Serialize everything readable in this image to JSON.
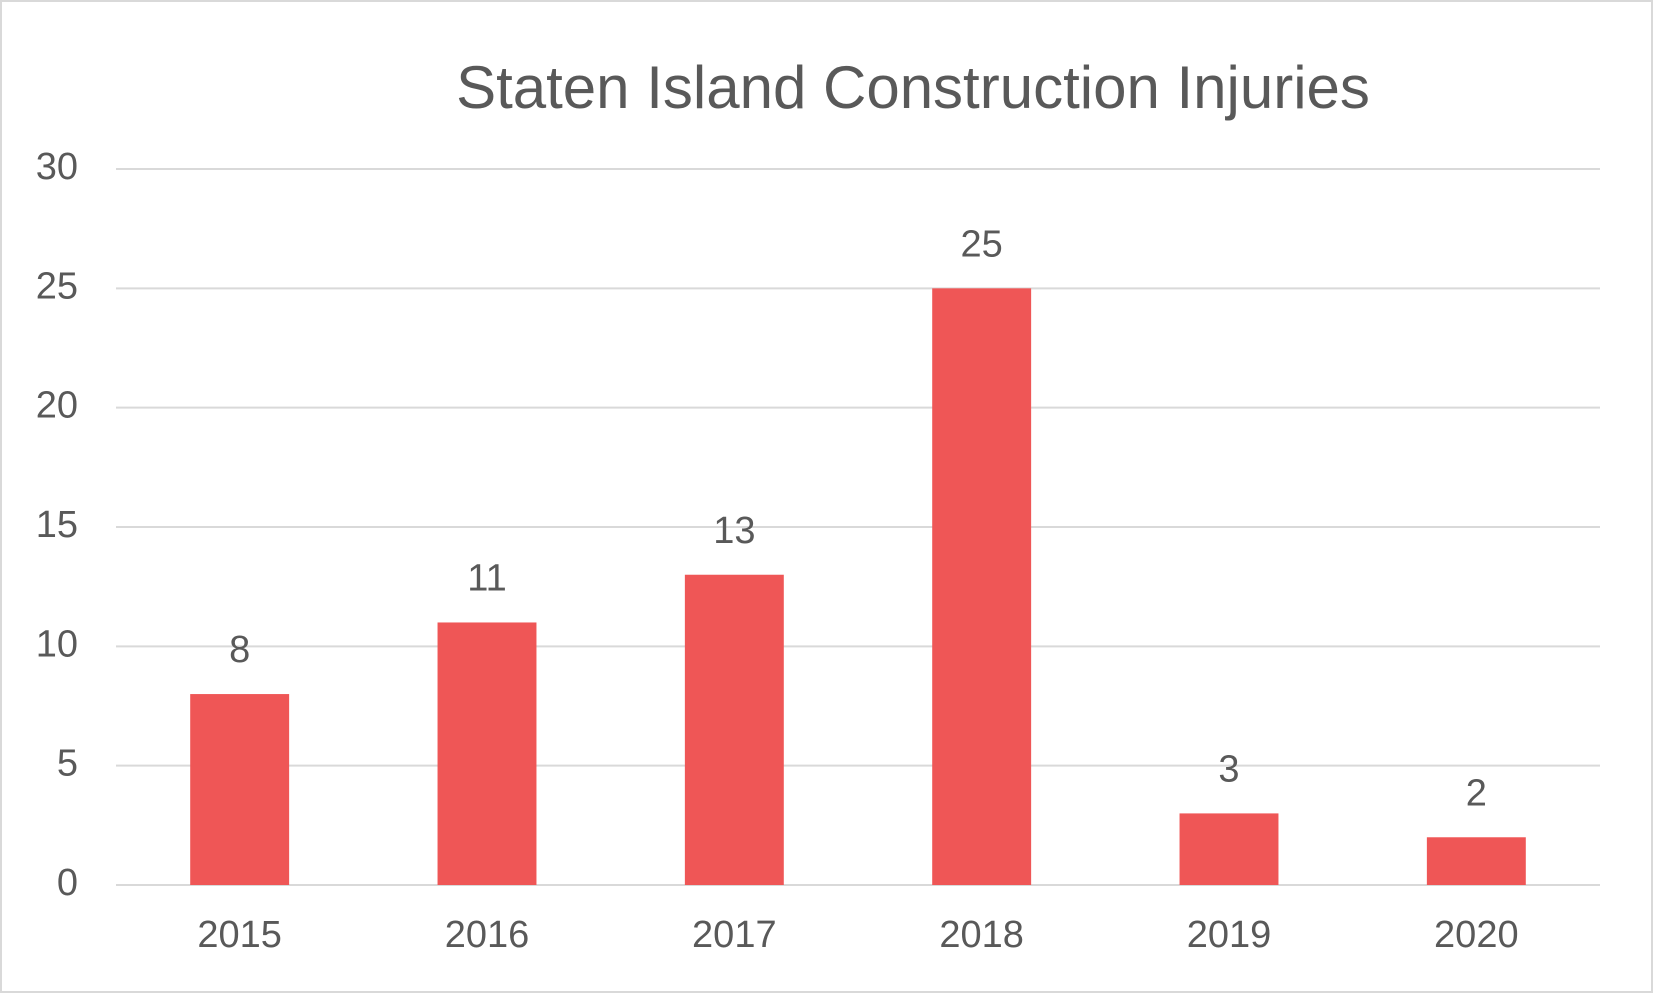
{
  "chart_data": {
    "type": "bar",
    "title": "Staten Island Construction Injuries",
    "categories": [
      "2015",
      "2016",
      "2017",
      "2018",
      "2019",
      "2020"
    ],
    "values": [
      8,
      11,
      13,
      25,
      3,
      2
    ],
    "color": "#ef5656",
    "ylim": [
      0,
      30
    ],
    "yticks": [
      0,
      5,
      10,
      15,
      20,
      25,
      30
    ],
    "grid": true
  }
}
